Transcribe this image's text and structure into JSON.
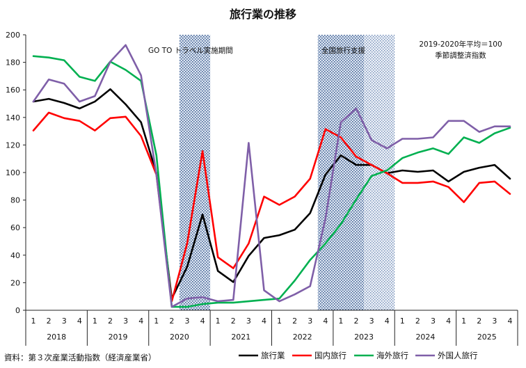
{
  "chart_data": {
    "type": "line",
    "title": "旅行業の推移",
    "xlabel": "",
    "ylabel": "",
    "ylim": [
      0,
      200
    ],
    "yticks": [
      0,
      20,
      40,
      60,
      80,
      100,
      120,
      140,
      160,
      180,
      200
    ],
    "quarters": [
      "1",
      "2",
      "3",
      "4",
      "1",
      "2",
      "3",
      "4",
      "1",
      "2",
      "3",
      "4",
      "1",
      "2",
      "3",
      "4",
      "1",
      "2",
      "3",
      "4",
      "1",
      "2",
      "3",
      "4",
      "1",
      "2",
      "3",
      "4",
      "1",
      "2",
      "3",
      "4"
    ],
    "years": [
      "2018",
      "2019",
      "2020",
      "2021",
      "2022",
      "2023",
      "2024",
      "2025"
    ],
    "note_line1": "2019-2020年平均＝100",
    "note_line2": "季節調整済指数",
    "source": "資料：第３次産業活動指数（経済産業省）",
    "shaded_periods": [
      {
        "label": "GO TO トラベル実施期間",
        "start_index": 9.5,
        "end_index": 11.5
      },
      {
        "label": "全国旅行支援",
        "start_index": 18.5,
        "end_index": 23.5
      }
    ],
    "series": [
      {
        "name": "旅行業",
        "color": "#000000",
        "values": [
          151.5,
          153.5,
          150.5,
          146.5,
          151.5,
          160.5,
          149.5,
          136.5,
          99.5,
          8.5,
          31.5,
          69.5,
          28.5,
          20.5,
          39.5,
          52.5,
          54.5,
          58.5,
          70.5,
          98.5,
          112.5,
          105.5,
          105.5,
          99.5,
          101.5,
          100.5,
          101.5,
          93.5,
          100.5,
          103.5,
          105.5,
          95.5
        ]
      },
      {
        "name": "国内旅行",
        "color": "#ff0000",
        "values": [
          130.5,
          143.5,
          139.5,
          137.5,
          130.5,
          139.5,
          140.5,
          126.5,
          98.5,
          6.5,
          48.5,
          115.5,
          38.5,
          30.5,
          48.5,
          82.5,
          76.5,
          82.5,
          95.5,
          131.5,
          125.5,
          111.5,
          105.5,
          99.5,
          92.5,
          92.5,
          93.5,
          89.5,
          78.5,
          92.5,
          93.5,
          84.5
        ]
      },
      {
        "name": "海外旅行",
        "color": "#00b050",
        "values": [
          184.5,
          183.5,
          181.5,
          169.5,
          166.5,
          180.5,
          174.5,
          166.5,
          112.5,
          2.5,
          2.5,
          4.5,
          5.5,
          5.5,
          6.5,
          7.5,
          8.5,
          21.5,
          36.5,
          48.5,
          62.5,
          80.5,
          97.5,
          101.5,
          110.5,
          114.5,
          117.5,
          113.5,
          125.5,
          121.5,
          128.5,
          132.5
        ]
      },
      {
        "name": "外国人旅行",
        "color": "#7f5fa8",
        "values": [
          151.5,
          167.5,
          164.5,
          151.5,
          155.5,
          180.5,
          192.5,
          170.5,
          98.5,
          2.5,
          8.5,
          9.5,
          6.5,
          7.5,
          121.5,
          14.5,
          6.5,
          11.5,
          17.5,
          66.5,
          136.5,
          146.5,
          123.5,
          117.5,
          124.5,
          124.5,
          125.5,
          137.5,
          137.5,
          129.5,
          133.5,
          133.5
        ]
      }
    ]
  }
}
